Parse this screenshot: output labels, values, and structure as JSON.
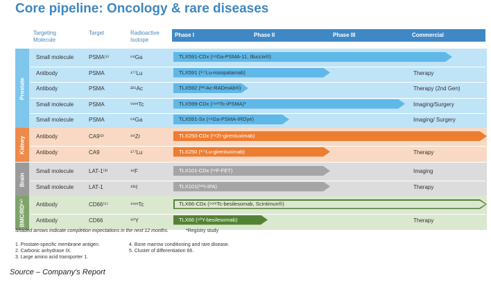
{
  "title": "Core pipeline: Oncology & rare diseases",
  "headers": {
    "molecule": "Targeting Molecule",
    "target": "Target",
    "isotope": "Radioactive Isotope",
    "phases": [
      "Phase I",
      "Phase II",
      "Phase III",
      "Commercial"
    ]
  },
  "groups": [
    {
      "name": "Prostate",
      "color": "#bfe3f7",
      "side_color": "#7fc6ec",
      "arrow_color": "#5fb8e8",
      "rows": [
        {
          "molecule": "Small molecule",
          "target": "PSMA⁽¹⁾",
          "isotope": "⁶⁸Ga",
          "program": "TLX591-CDx (⁶⁸Ga-PSMA-11, Illuccix®)",
          "progress": 0.89,
          "status": "Imaging"
        },
        {
          "molecule": "Antibody",
          "target": "PSMA",
          "isotope": "¹⁷⁷Lu",
          "program": "TLX591 (¹⁷⁷Lu-rosopatamab)",
          "progress": 0.5,
          "status": "Therapy"
        },
        {
          "molecule": "Antibody",
          "target": "PSMA",
          "isotope": "²²⁵Ac",
          "program": "TLX592 (²²⁵Ac-RADmAb®)",
          "progress": 0.24,
          "status": "Therapy (2nd Gen)"
        },
        {
          "molecule": "Small molecule",
          "target": "PSMA",
          "isotope": "⁹⁹ᵐTc",
          "program": "TLX599-CDx (⁹⁹ᵐTc-iPSMA)*",
          "progress": 0.74,
          "status": "Imaging/Surgery"
        },
        {
          "molecule": "Small molecule",
          "target": "PSMA",
          "isotope": "⁶⁸Ga",
          "program": "TLX591-Sx (⁶⁸Ga-PSMA-IRDye)",
          "progress": 0.37,
          "status": "Imaging/ Surgery"
        }
      ]
    },
    {
      "name": "Kidney",
      "color": "#f9d9c3",
      "side_color": "#ee8a4a",
      "arrow_color": "#ed7d31",
      "rows": [
        {
          "molecule": "Antibody",
          "target": "CA9⁽²⁾",
          "isotope": "⁸⁹Zr",
          "program": "TLX250-CDx (⁸⁹Zr-girentuximab)",
          "progress": 1.0,
          "status": "Imaging"
        },
        {
          "molecule": "Antibody",
          "target": "CA9",
          "isotope": "¹⁷⁷Lu",
          "program": "TLX250 (¹⁷⁷Lu-girentuximab)",
          "progress": 0.5,
          "status": "Therapy"
        }
      ]
    },
    {
      "name": "Brain",
      "color": "#dcdcdc",
      "side_color": "#9a9a9a",
      "arrow_color": "#a5a5a5",
      "rows": [
        {
          "molecule": "Small molecule",
          "target": "LAT-1⁽³⁾",
          "isotope": "¹⁸F",
          "program": "TLX101-CDx (¹⁸F-FET)",
          "progress": 0.5,
          "status": "Imaging"
        },
        {
          "molecule": "Small molecule",
          "target": "LAT-1",
          "isotope": "¹³¹I",
          "program": "TLX101(¹³¹I-IPA)",
          "progress": 0.5,
          "status": "Therapy"
        }
      ]
    },
    {
      "name": "BMC/RD⁽⁴⁾",
      "color": "#dbe8d0",
      "side_color": "#7fa36a",
      "arrow_color": "#548235",
      "rows": [
        {
          "molecule": "Antibody",
          "target": "CD66⁽⁵⁾",
          "isotope": "⁹⁹ᵐTc",
          "program": "TLX66-CDx (⁹⁹ᵐTc-besilesomab, Scintimun®)",
          "progress": 1.0,
          "status": "Imaging",
          "outline": true
        },
        {
          "molecule": "Antibody",
          "target": "CD66",
          "isotope": "⁹⁰Y",
          "program": "TLX66 (⁹⁰Y-besilesomab)",
          "progress": 0.3,
          "status": "Therapy"
        }
      ]
    }
  ],
  "notes": {
    "shaded": "Shaded arrows indicate completion expectations in the next 12 months.",
    "registry": "*Registry study"
  },
  "footnotes": [
    "1.  Prostate-specific membrane antigen.",
    "2.  Carbonic anhydrase IX.",
    "3.  Large amino acid transporter 1.",
    "4.   Bone marrow conditioning and rare disease.",
    "5.   Cluster of differentiation 66."
  ],
  "source": "Source – Company's Report"
}
